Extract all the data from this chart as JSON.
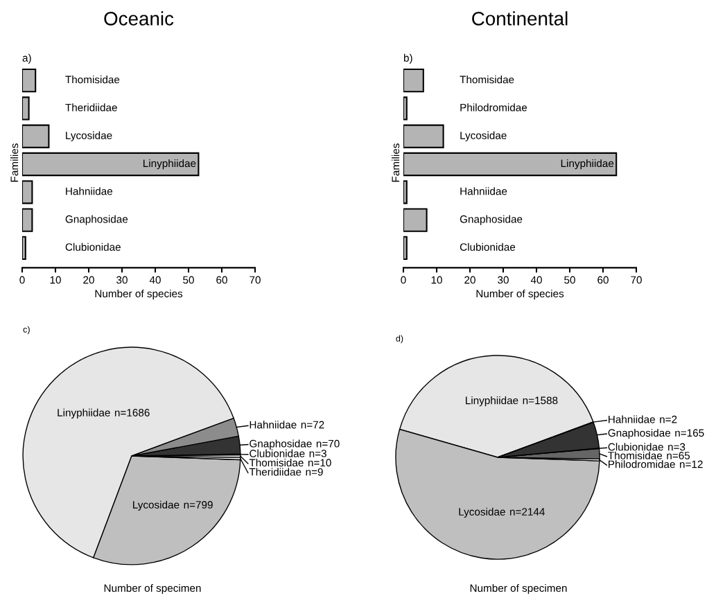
{
  "chart_data": [
    {
      "type": "bar",
      "orientation": "horizontal",
      "title": "Oceanic",
      "annotations": [
        "a)"
      ],
      "xlabel": "Number of species",
      "ylabel": "Families",
      "tick_labels": "x",
      "categories": [
        "Thomisidae",
        "Theridiidae",
        "Lycosidae",
        "Linyphiidae",
        "Hahniidae",
        "Gnaphosidae",
        "Clubionidae"
      ],
      "values": [
        4,
        2,
        8,
        53,
        3,
        3,
        1
      ],
      "color": "#b4b4b4",
      "xlim": [
        0,
        70
      ],
      "xticks": [
        0,
        10,
        20,
        30,
        40,
        50,
        60,
        70
      ],
      "grid": false
    },
    {
      "type": "bar",
      "orientation": "horizontal",
      "title": "Continental",
      "annotations": [
        "b)"
      ],
      "xlabel": "Number of species",
      "ylabel": "Families",
      "tick_labels": "x",
      "categories": [
        "Thomisidae",
        "Philodromidae",
        "Lycosidae",
        "Linyphiidae",
        "Hahniidae",
        "Gnaphosidae",
        "Clubionidae"
      ],
      "values": [
        6,
        1,
        12,
        64,
        1,
        7,
        1
      ],
      "color": "#b4b4b4",
      "xlim": [
        0,
        70
      ],
      "xticks": [
        0,
        10,
        20,
        30,
        40,
        50,
        60,
        70
      ],
      "grid": false
    },
    {
      "type": "pie",
      "annotations": [
        "c)",
        "Number of specimen"
      ],
      "categories": [
        "Linyphiidae",
        "Lycosidae",
        "Theridiidae",
        "Thomisidae",
        "Clubionidae",
        "Gnaphosidae",
        "Hahniidae"
      ],
      "values": [
        1686,
        799,
        9,
        10,
        3,
        70,
        72
      ],
      "value_labels": [
        "n=1686",
        "n=799",
        "n=9",
        "n=10",
        "n=3",
        "n=70",
        "n=72"
      ],
      "colors": [
        "#e6e6e6",
        "#bfbfbf",
        "#ffffff",
        "#d9d9d9",
        "#333333",
        "#333333",
        "#8c8c8c"
      ]
    },
    {
      "type": "pie",
      "annotations": [
        "d)",
        "Number of specimen"
      ],
      "categories": [
        "Linyphiidae",
        "Lycosidae",
        "Philodromidae",
        "Thomisidae",
        "Clubionidae",
        "Gnaphosidae",
        "Hahniidae"
      ],
      "values": [
        1588,
        2144,
        12,
        65,
        3,
        165,
        2
      ],
      "value_labels": [
        "n=1588",
        "n=2144",
        "n=12",
        "n=65",
        "n=3",
        "n=165",
        "n=2"
      ],
      "colors": [
        "#e6e6e6",
        "#bfbfbf",
        "#ffffff",
        "#666666",
        "#333333",
        "#333333",
        "#333333"
      ]
    }
  ]
}
